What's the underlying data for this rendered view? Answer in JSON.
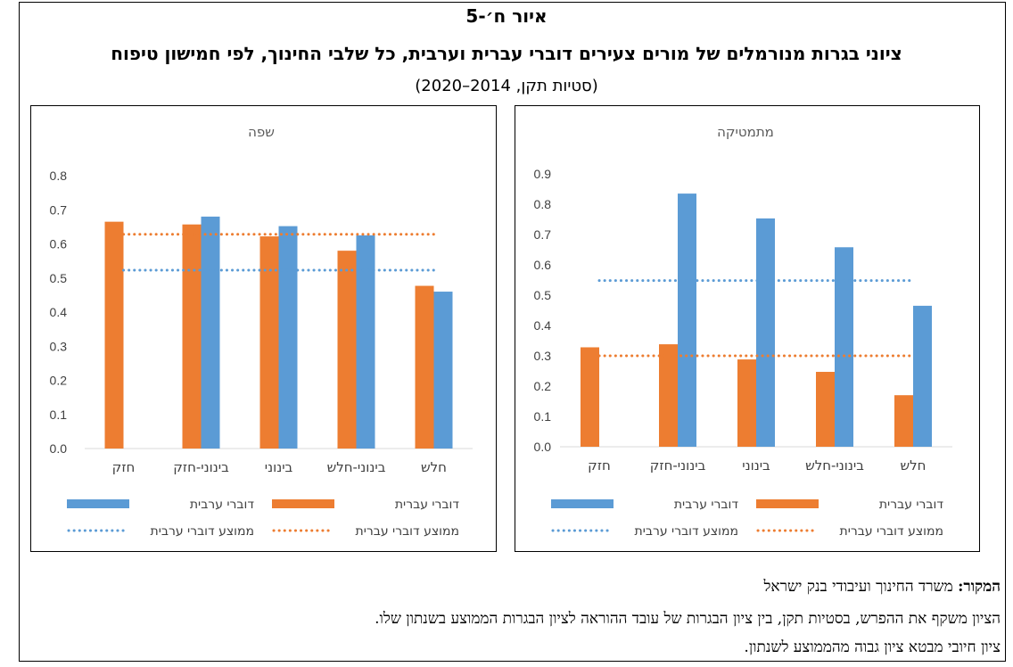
{
  "figure": {
    "number": "איור ח׳-5",
    "title": "ציוני בגרות מנורמלים של מורים צעירים דוברי עברית וערבית, כל שלבי החינוך, לפי חמישון טיפוח",
    "subtitle": "(סטיות תקן, 2014–2020)"
  },
  "legend": {
    "arabic": "דוברי ערבית",
    "hebrew": "דוברי עברית",
    "arabic_avg": "ממוצע דוברי ערבית",
    "hebrew_avg": "ממוצע דוברי עברית"
  },
  "colors": {
    "arabic": "#5b9bd5",
    "hebrew": "#ed7d31"
  },
  "footer": {
    "source_label": "המקור:",
    "source_text": " משרד החינוך ועיבודי בנק ישראל",
    "note_1": "הציון משקף את ההפרש, בסטיות תקן, בין ציון הבגרות של עובד ההוראה לציון הבגרות הממוצע בשנתון שלו.",
    "note_2": "ציון חיובי מבטא ציון גבוה מהממוצע לשנתון."
  },
  "chart_data": [
    {
      "id": "lang",
      "type": "bar",
      "title": "שפה",
      "categories": [
        "חלש",
        "בינוני-חלש",
        "בינוני",
        "בינוני-חזק",
        "חזק"
      ],
      "ylim": [
        0,
        0.8
      ],
      "yticks": [
        0,
        0.1,
        0.2,
        0.3,
        0.4,
        0.5,
        0.6,
        0.7,
        0.8
      ],
      "series": [
        {
          "name": "דוברי ערבית",
          "values": [
            0.46,
            0.625,
            0.652,
            0.68,
            null
          ]
        },
        {
          "name": "דוברי עברית",
          "values": [
            0.477,
            0.58,
            0.622,
            0.657,
            0.665
          ]
        }
      ],
      "averages": [
        {
          "name": "ממוצע דוברי ערבית",
          "value": 0.523
        },
        {
          "name": "ממוצע דוברי עברית",
          "value": 0.628
        }
      ],
      "grid": false,
      "legend_position": "bottom"
    },
    {
      "id": "math",
      "type": "bar",
      "title": "מתמטיקה",
      "categories": [
        "חלש",
        "בינוני-חלש",
        "בינוני",
        "בינוני-חזק",
        "חזק"
      ],
      "ylim": [
        0,
        0.9
      ],
      "yticks": [
        0,
        0.1,
        0.2,
        0.3,
        0.4,
        0.5,
        0.6,
        0.7,
        0.8,
        0.9
      ],
      "series": [
        {
          "name": "דוברי ערבית",
          "values": [
            0.465,
            0.658,
            0.753,
            0.835,
            null
          ]
        },
        {
          "name": "דוברי עברית",
          "values": [
            0.17,
            0.247,
            0.288,
            0.338,
            0.328
          ]
        }
      ],
      "averages": [
        {
          "name": "ממוצע דוברי ערבית",
          "value": 0.548
        },
        {
          "name": "ממוצע דוברי עברית",
          "value": 0.3
        }
      ],
      "grid": false,
      "legend_position": "bottom"
    }
  ]
}
